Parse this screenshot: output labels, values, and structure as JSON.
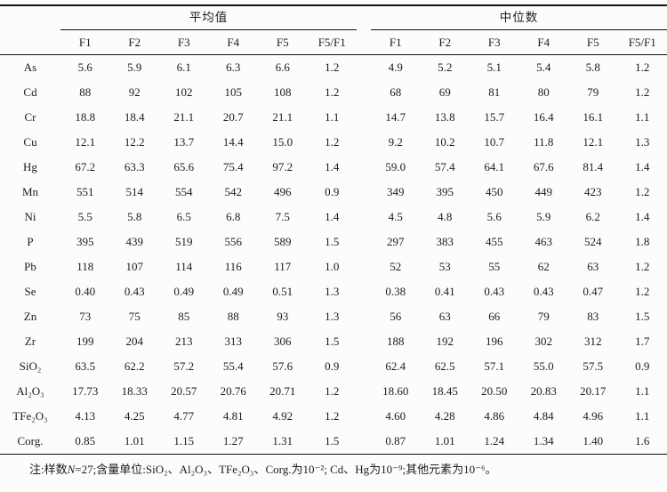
{
  "colors": {
    "background": "#fcfcfc",
    "text": "#1c1c1c",
    "rule": "#141414"
  },
  "table": {
    "group_headers": [
      {
        "label": "平均值"
      },
      {
        "label": "中位数"
      }
    ],
    "col_headers": [
      "F1",
      "F2",
      "F3",
      "F4",
      "F5",
      "F5/F1"
    ],
    "rows": [
      {
        "label": "As",
        "mean": [
          "5.6",
          "5.9",
          "6.1",
          "6.3",
          "6.6",
          "1.2"
        ],
        "median": [
          "4.9",
          "5.2",
          "5.1",
          "5.4",
          "5.8",
          "1.2"
        ]
      },
      {
        "label": "Cd",
        "mean": [
          "88",
          "92",
          "102",
          "105",
          "108",
          "1.2"
        ],
        "median": [
          "68",
          "69",
          "81",
          "80",
          "79",
          "1.2"
        ]
      },
      {
        "label": "Cr",
        "mean": [
          "18.8",
          "18.4",
          "21.1",
          "20.7",
          "21.1",
          "1.1"
        ],
        "median": [
          "14.7",
          "13.8",
          "15.7",
          "16.4",
          "16.1",
          "1.1"
        ]
      },
      {
        "label": "Cu",
        "mean": [
          "12.1",
          "12.2",
          "13.7",
          "14.4",
          "15.0",
          "1.2"
        ],
        "median": [
          "9.2",
          "10.2",
          "10.7",
          "11.8",
          "12.1",
          "1.3"
        ]
      },
      {
        "label": "Hg",
        "mean": [
          "67.2",
          "63.3",
          "65.6",
          "75.4",
          "97.2",
          "1.4"
        ],
        "median": [
          "59.0",
          "57.4",
          "64.1",
          "67.6",
          "81.4",
          "1.4"
        ]
      },
      {
        "label": "Mn",
        "mean": [
          "551",
          "514",
          "554",
          "542",
          "496",
          "0.9"
        ],
        "median": [
          "349",
          "395",
          "450",
          "449",
          "423",
          "1.2"
        ]
      },
      {
        "label": "Ni",
        "mean": [
          "5.5",
          "5.8",
          "6.5",
          "6.8",
          "7.5",
          "1.4"
        ],
        "median": [
          "4.5",
          "4.8",
          "5.6",
          "5.9",
          "6.2",
          "1.4"
        ]
      },
      {
        "label": "P",
        "mean": [
          "395",
          "439",
          "519",
          "556",
          "589",
          "1.5"
        ],
        "median": [
          "297",
          "383",
          "455",
          "463",
          "524",
          "1.8"
        ]
      },
      {
        "label": "Pb",
        "mean": [
          "118",
          "107",
          "114",
          "116",
          "117",
          "1.0"
        ],
        "median": [
          "52",
          "53",
          "55",
          "62",
          "63",
          "1.2"
        ]
      },
      {
        "label": "Se",
        "mean": [
          "0.40",
          "0.43",
          "0.49",
          "0.49",
          "0.51",
          "1.3"
        ],
        "median": [
          "0.38",
          "0.41",
          "0.43",
          "0.43",
          "0.47",
          "1.2"
        ]
      },
      {
        "label": "Zn",
        "mean": [
          "73",
          "75",
          "85",
          "88",
          "93",
          "1.3"
        ],
        "median": [
          "56",
          "63",
          "66",
          "79",
          "83",
          "1.5"
        ]
      },
      {
        "label": "Zr",
        "mean": [
          "199",
          "204",
          "213",
          "313",
          "306",
          "1.5"
        ],
        "median": [
          "188",
          "192",
          "196",
          "302",
          "312",
          "1.7"
        ]
      },
      {
        "label": "SiO₂",
        "mean": [
          "63.5",
          "62.2",
          "57.2",
          "55.4",
          "57.6",
          "0.9"
        ],
        "median": [
          "62.4",
          "62.5",
          "57.1",
          "55.0",
          "57.5",
          "0.9"
        ]
      },
      {
        "label": "Al₂O₃",
        "mean": [
          "17.73",
          "18.33",
          "20.57",
          "20.76",
          "20.71",
          "1.2"
        ],
        "median": [
          "18.60",
          "18.45",
          "20.50",
          "20.83",
          "20.17",
          "1.1"
        ]
      },
      {
        "label": "TFe₂O₃",
        "mean": [
          "4.13",
          "4.25",
          "4.77",
          "4.81",
          "4.92",
          "1.2"
        ],
        "median": [
          "4.60",
          "4.28",
          "4.86",
          "4.84",
          "4.96",
          "1.1"
        ]
      },
      {
        "label": "Corg.",
        "mean": [
          "0.85",
          "1.01",
          "1.15",
          "1.27",
          "1.31",
          "1.5"
        ],
        "median": [
          "0.87",
          "1.01",
          "1.24",
          "1.34",
          "1.40",
          "1.6"
        ]
      }
    ]
  },
  "note": {
    "prefix": "注:样数",
    "n": "N",
    "suffix": "=27;含量单位:SiO₂、Al₂O₃、TFe₂O₃、Corg.为10⁻²; Cd、Hg为10⁻⁹;其他元素为10⁻⁶。"
  }
}
